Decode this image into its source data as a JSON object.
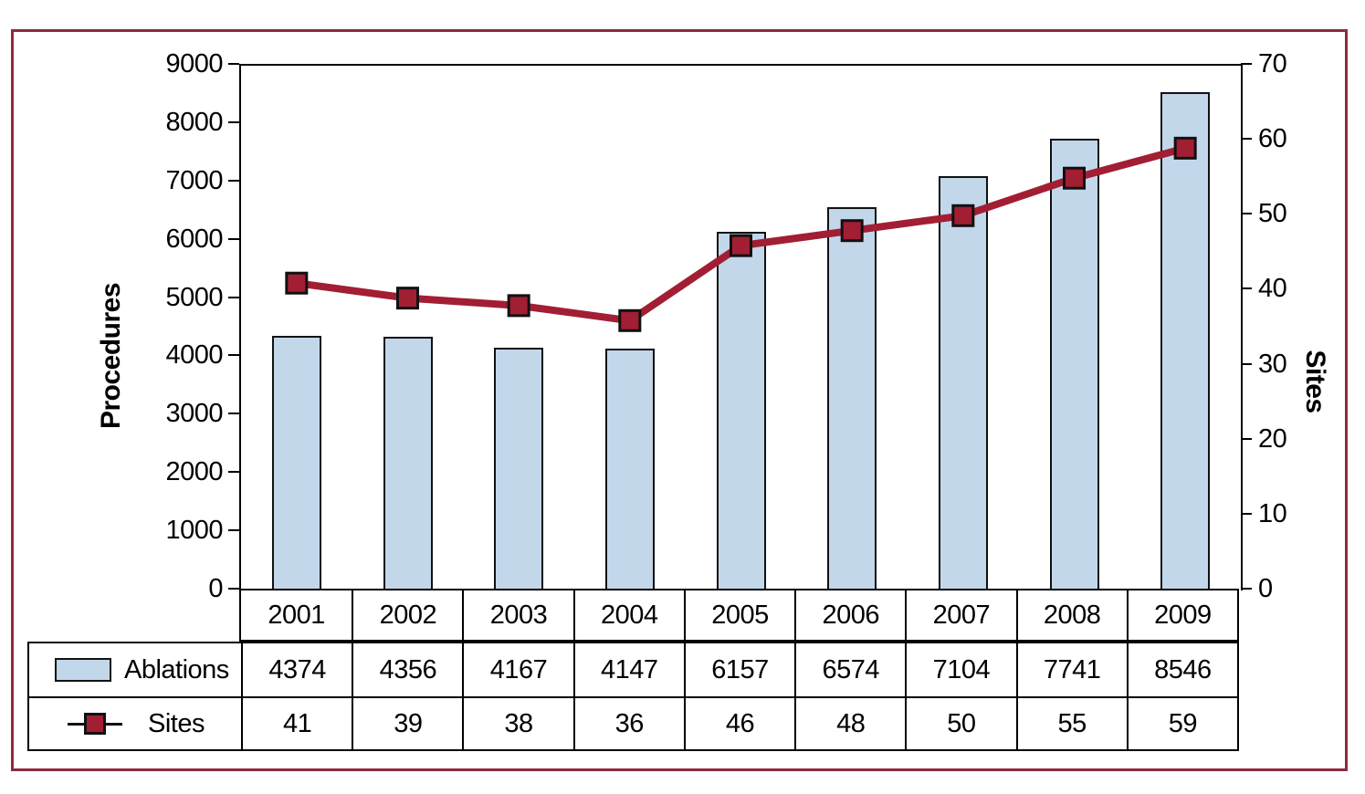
{
  "figure": {
    "colors": {
      "bar_fill": "#C3D7EB",
      "bar_border": "#111111",
      "line": "#A21E33",
      "marker_border": "#111111",
      "frame_border": "#8B2C3C",
      "grid_border": "#000000"
    },
    "left_axis": {
      "title": "Procedures",
      "ticks": [
        "0",
        "1000",
        "2000",
        "3000",
        "4000",
        "5000",
        "6000",
        "7000",
        "8000",
        "9000"
      ]
    },
    "right_axis": {
      "title": "Sites",
      "ticks": [
        "0",
        "10",
        "20",
        "30",
        "40",
        "50",
        "60",
        "70"
      ]
    },
    "legend": {
      "ablations_label": "Ablations",
      "sites_label": "Sites"
    }
  },
  "chart_data": {
    "type": "bar",
    "subtype": "bar+line combo, dual axis, with data table",
    "title": "",
    "xlabel": "",
    "ylabel_left": "Procedures",
    "ylabel_right": "Sites",
    "ylim_left": [
      0,
      9000
    ],
    "ylim_right": [
      0,
      70
    ],
    "grid": false,
    "legend_position": "table-left",
    "categories": [
      "2001",
      "2002",
      "2003",
      "2004",
      "2005",
      "2006",
      "2007",
      "2008",
      "2009"
    ],
    "series": [
      {
        "name": "Ablations",
        "type": "bar",
        "axis": "left",
        "values": [
          4374,
          4356,
          4167,
          4147,
          6157,
          6574,
          7104,
          7741,
          8546
        ]
      },
      {
        "name": "Sites",
        "type": "line",
        "marker": "square",
        "axis": "right",
        "values": [
          41,
          39,
          38,
          36,
          46,
          48,
          50,
          55,
          59
        ]
      }
    ]
  }
}
